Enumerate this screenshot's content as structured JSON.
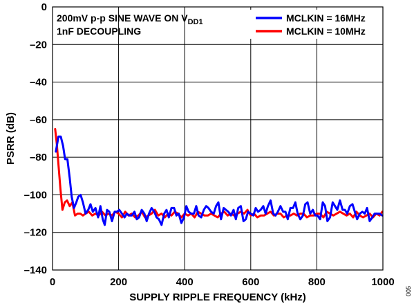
{
  "chart_data": {
    "type": "line",
    "xlabel": "SUPPLY RIPPLE FREQUENCY (kHz)",
    "ylabel": "PSRR (dB)",
    "xlim": [
      0,
      1000
    ],
    "ylim": [
      -140,
      0
    ],
    "x_ticks": [
      "0",
      "200",
      "400",
      "600",
      "800",
      "1000"
    ],
    "y_ticks": [
      "0",
      "–20",
      "–40",
      "–60",
      "–80",
      "–100",
      "–120",
      "–140"
    ],
    "x_tick_values": [
      0,
      200,
      400,
      600,
      800,
      1000
    ],
    "y_tick_values": [
      0,
      -20,
      -40,
      -60,
      -80,
      -100,
      -120,
      -140
    ],
    "grid": true,
    "legend_position": "top-right",
    "annotation": {
      "line1_prefix": "200mV p-p SINE WAVE ON V",
      "line1_subscript": "DD1",
      "line2": "1nF DECOUPLING"
    },
    "figure_id": "005",
    "series": [
      {
        "name": "MCLKIN = 16MHz",
        "color": "#0000ff",
        "x": [
          10,
          18,
          25,
          32,
          38,
          45,
          52,
          58,
          65,
          72,
          78,
          85,
          92,
          100,
          108,
          115,
          122,
          130,
          138,
          145,
          152,
          158,
          165,
          172,
          180,
          188,
          195,
          202,
          210,
          218,
          225,
          232,
          240,
          248,
          255,
          262,
          270,
          278,
          285,
          292,
          300,
          308,
          315,
          322,
          330,
          338,
          345,
          352,
          360,
          368,
          375,
          382,
          390,
          398,
          405,
          412,
          420,
          428,
          435,
          442,
          450,
          458,
          465,
          472,
          480,
          488,
          495,
          502,
          510,
          518,
          525,
          532,
          540,
          548,
          555,
          562,
          570,
          578,
          585,
          592,
          600,
          608,
          615,
          622,
          630,
          638,
          645,
          652,
          660,
          668,
          675,
          682,
          690,
          698,
          705,
          712,
          720,
          728,
          735,
          742,
          750,
          758,
          765,
          772,
          780,
          788,
          795,
          802,
          810,
          818,
          825,
          832,
          840,
          848,
          855,
          862,
          870,
          878,
          885,
          892,
          900,
          908,
          915,
          922,
          930,
          938,
          945,
          952,
          960,
          968,
          975,
          982,
          990,
          998
        ],
        "values": [
          -77,
          -69,
          -69,
          -74,
          -81,
          -81,
          -91,
          -101,
          -107,
          -104,
          -101,
          -100,
          -104,
          -110,
          -108,
          -105,
          -109,
          -107,
          -112,
          -106,
          -113,
          -116,
          -108,
          -109,
          -114,
          -109,
          -109,
          -108,
          -110,
          -112,
          -110,
          -111,
          -111,
          -109,
          -113,
          -112,
          -108,
          -110,
          -114,
          -110,
          -107,
          -109,
          -112,
          -113,
          -116,
          -110,
          -108,
          -112,
          -107,
          -107,
          -111,
          -110,
          -115,
          -112,
          -106,
          -109,
          -110,
          -110,
          -106,
          -111,
          -112,
          -108,
          -106,
          -107,
          -109,
          -110,
          -106,
          -104,
          -113,
          -107,
          -108,
          -109,
          -111,
          -108,
          -113,
          -107,
          -106,
          -114,
          -113,
          -109,
          -110,
          -111,
          -107,
          -109,
          -108,
          -106,
          -110,
          -106,
          -103,
          -110,
          -111,
          -109,
          -106,
          -109,
          -109,
          -113,
          -107,
          -107,
          -104,
          -110,
          -113,
          -111,
          -105,
          -104,
          -110,
          -108,
          -111,
          -111,
          -113,
          -104,
          -106,
          -114,
          -112,
          -104,
          -106,
          -108,
          -103,
          -108,
          -108,
          -110,
          -106,
          -105,
          -109,
          -113,
          -110,
          -109,
          -110,
          -107,
          -114,
          -112,
          -110,
          -110,
          -110,
          -111
        ]
      },
      {
        "name": "MCLKIN = 10MHz",
        "color": "#ff0000",
        "x": [
          8,
          13,
          18,
          24,
          30,
          37,
          44,
          52,
          60,
          68,
          76,
          84,
          92,
          100,
          110,
          120,
          130,
          140,
          150,
          160,
          170,
          180,
          190,
          200,
          210,
          220,
          230,
          240,
          250,
          260,
          270,
          280,
          290,
          300,
          310,
          320,
          330,
          340,
          350,
          360,
          370,
          380,
          390,
          400,
          410,
          420,
          430,
          440,
          450,
          460,
          470,
          480,
          490,
          500,
          510,
          520,
          530,
          540,
          550,
          560,
          570,
          580,
          590,
          600,
          610,
          620,
          630,
          640,
          650,
          660,
          670,
          680,
          690,
          700,
          710,
          720,
          730,
          740,
          750,
          760,
          770,
          780,
          790,
          800,
          810,
          820,
          830,
          840,
          850,
          860,
          870,
          880,
          890,
          900,
          910,
          920,
          930,
          940,
          950,
          960,
          970,
          980,
          990,
          998
        ],
        "values": [
          -65,
          -73,
          -84,
          -97,
          -108,
          -104,
          -103,
          -106,
          -104,
          -111,
          -110,
          -110,
          -111,
          -110,
          -109,
          -111,
          -110,
          -111,
          -109,
          -111,
          -110,
          -111,
          -109,
          -110,
          -112,
          -109,
          -111,
          -110,
          -112,
          -111,
          -109,
          -112,
          -111,
          -110,
          -108,
          -111,
          -110,
          -112,
          -110,
          -111,
          -109,
          -110,
          -112,
          -110,
          -111,
          -110,
          -112,
          -109,
          -110,
          -111,
          -111,
          -110,
          -111,
          -112,
          -110,
          -109,
          -111,
          -110,
          -111,
          -110,
          -109,
          -110,
          -108,
          -111,
          -110,
          -112,
          -111,
          -111,
          -110,
          -109,
          -111,
          -110,
          -110,
          -112,
          -111,
          -111,
          -110,
          -111,
          -110,
          -110,
          -112,
          -111,
          -111,
          -110,
          -110,
          -112,
          -109,
          -110,
          -111,
          -110,
          -109,
          -110,
          -111,
          -110,
          -112,
          -109,
          -111,
          -112,
          -111,
          -110,
          -112,
          -110,
          -111,
          -109
        ]
      }
    ]
  }
}
